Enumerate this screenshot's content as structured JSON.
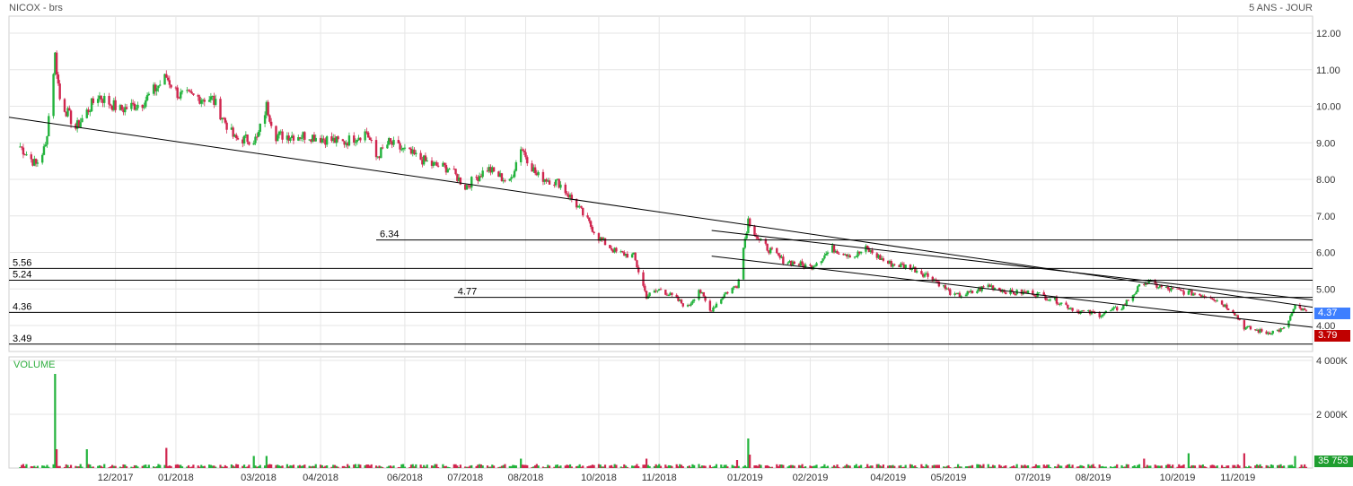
{
  "header": {
    "title": "NICOX - brs",
    "period": "5 ANS - JOUR"
  },
  "colors": {
    "up": "#22b33c",
    "down": "#d0264f",
    "last_tag": "#3e7fff",
    "low_tag": "#c00000",
    "volume_tag": "#1f9e30",
    "grid": "#e6e6e6",
    "line": "#000000"
  },
  "chart_data": {
    "type": "candlestick",
    "xlabel": "",
    "ylabel": "",
    "x_ticks": [
      "12/2017",
      "01/2018",
      "03/2018",
      "04/2018",
      "06/2018",
      "07/2018",
      "08/2018",
      "10/2018",
      "11/2018",
      "01/2019",
      "02/2019",
      "04/2019",
      "05/2019",
      "07/2019",
      "08/2019",
      "10/2019",
      "11/2019"
    ],
    "y_ticks": [
      "12.00",
      "11.00",
      "10.00",
      "9.00",
      "8.00",
      "7.00",
      "6.00",
      "5.00",
      "4.00"
    ],
    "ylim": [
      3.5,
      12.4
    ],
    "grid": true,
    "price_anchors": [
      {
        "d": "2017-10-02",
        "v": 8.9
      },
      {
        "d": "2017-10-12",
        "v": 8.4
      },
      {
        "d": "2017-10-18",
        "v": 8.9
      },
      {
        "d": "2017-10-24",
        "v": 11.4
      },
      {
        "d": "2017-10-27",
        "v": 10.2
      },
      {
        "d": "2017-11-06",
        "v": 9.4
      },
      {
        "d": "2017-11-20",
        "v": 10.3
      },
      {
        "d": "2017-12-04",
        "v": 9.9
      },
      {
        "d": "2017-12-18",
        "v": 10.1
      },
      {
        "d": "2018-01-02",
        "v": 10.8
      },
      {
        "d": "2018-01-10",
        "v": 10.3
      },
      {
        "d": "2018-01-31",
        "v": 10.2
      },
      {
        "d": "2018-02-14",
        "v": 9.1
      },
      {
        "d": "2018-02-28",
        "v": 9.1
      },
      {
        "d": "2018-03-06",
        "v": 10.0
      },
      {
        "d": "2018-03-12",
        "v": 9.2
      },
      {
        "d": "2018-04-02",
        "v": 9.2
      },
      {
        "d": "2018-04-23",
        "v": 9.0
      },
      {
        "d": "2018-05-08",
        "v": 9.3
      },
      {
        "d": "2018-05-14",
        "v": 8.6
      },
      {
        "d": "2018-05-22",
        "v": 9.0
      },
      {
        "d": "2018-06-18",
        "v": 8.4
      },
      {
        "d": "2018-06-29",
        "v": 8.3
      },
      {
        "d": "2018-07-09",
        "v": 7.8
      },
      {
        "d": "2018-07-23",
        "v": 8.3
      },
      {
        "d": "2018-08-06",
        "v": 7.9
      },
      {
        "d": "2018-08-13",
        "v": 8.9
      },
      {
        "d": "2018-08-23",
        "v": 8.1
      },
      {
        "d": "2018-09-06",
        "v": 7.9
      },
      {
        "d": "2018-09-17",
        "v": 7.3
      },
      {
        "d": "2018-10-01",
        "v": 6.4
      },
      {
        "d": "2018-10-12",
        "v": 6.0
      },
      {
        "d": "2018-10-23",
        "v": 5.9
      },
      {
        "d": "2018-10-31",
        "v": 4.8
      },
      {
        "d": "2018-11-09",
        "v": 5.0
      },
      {
        "d": "2018-11-26",
        "v": 4.5
      },
      {
        "d": "2018-12-03",
        "v": 5.0
      },
      {
        "d": "2018-12-10",
        "v": 4.4
      },
      {
        "d": "2018-12-20",
        "v": 4.9
      },
      {
        "d": "2018-12-27",
        "v": 5.1
      },
      {
        "d": "2019-01-03",
        "v": 6.9
      },
      {
        "d": "2019-01-10",
        "v": 6.3
      },
      {
        "d": "2019-01-24",
        "v": 5.8
      },
      {
        "d": "2019-02-11",
        "v": 5.6
      },
      {
        "d": "2019-02-25",
        "v": 6.1
      },
      {
        "d": "2019-03-11",
        "v": 5.9
      },
      {
        "d": "2019-03-18",
        "v": 6.1
      },
      {
        "d": "2019-04-01",
        "v": 5.7
      },
      {
        "d": "2019-04-15",
        "v": 5.6
      },
      {
        "d": "2019-04-29",
        "v": 5.3
      },
      {
        "d": "2019-05-13",
        "v": 4.8
      },
      {
        "d": "2019-05-24",
        "v": 4.9
      },
      {
        "d": "2019-06-03",
        "v": 5.1
      },
      {
        "d": "2019-06-17",
        "v": 4.9
      },
      {
        "d": "2019-07-01",
        "v": 4.9
      },
      {
        "d": "2019-07-15",
        "v": 4.7
      },
      {
        "d": "2019-07-29",
        "v": 4.4
      },
      {
        "d": "2019-08-12",
        "v": 4.3
      },
      {
        "d": "2019-08-26",
        "v": 4.5
      },
      {
        "d": "2019-09-09",
        "v": 5.2
      },
      {
        "d": "2019-09-23",
        "v": 5.0
      },
      {
        "d": "2019-10-07",
        "v": 4.9
      },
      {
        "d": "2019-10-21",
        "v": 4.8
      },
      {
        "d": "2019-11-04",
        "v": 4.4
      },
      {
        "d": "2019-11-11",
        "v": 3.95
      },
      {
        "d": "2019-11-25",
        "v": 3.8
      },
      {
        "d": "2019-12-06",
        "v": 3.9
      },
      {
        "d": "2019-12-13",
        "v": 4.5
      },
      {
        "d": "2019-12-20",
        "v": 4.37
      }
    ],
    "horizontal_levels": [
      {
        "label": "6.34",
        "value": 6.34,
        "from": "2018-05-14"
      },
      {
        "label": "5.56",
        "value": 5.56,
        "from": "2017-09-25"
      },
      {
        "label": "5.24",
        "value": 5.24,
        "from": "2017-09-25"
      },
      {
        "label": "4.77",
        "value": 4.77,
        "from": "2018-07-02"
      },
      {
        "label": "4.36",
        "value": 4.36,
        "from": "2017-09-25"
      },
      {
        "label": "3.49",
        "value": 3.49,
        "from": "2017-09-25"
      }
    ],
    "trendlines": [
      {
        "from": {
          "d": "2017-09-25",
          "v": 9.7
        },
        "to": {
          "d": "2019-12-24",
          "v": 4.5
        }
      },
      {
        "from": {
          "d": "2018-12-11",
          "v": 6.6
        },
        "to": {
          "d": "2019-12-24",
          "v": 4.7
        }
      },
      {
        "from": {
          "d": "2018-12-11",
          "v": 5.9
        },
        "to": {
          "d": "2019-12-24",
          "v": 3.95
        }
      }
    ],
    "last_price": {
      "label": "4.37",
      "value": 4.37
    },
    "low_marker": {
      "label": "3.79",
      "value": 3.79
    },
    "volume": {
      "label": "VOLUME",
      "y_ticks": [
        "4 000K",
        "2 000K"
      ],
      "ylim": [
        0,
        4200000
      ],
      "spikes": [
        {
          "d": "2017-10-24",
          "v": 3500000
        },
        {
          "d": "2017-10-25",
          "v": 700000
        },
        {
          "d": "2017-11-13",
          "v": 700000
        },
        {
          "d": "2018-01-02",
          "v": 750000
        },
        {
          "d": "2018-02-26",
          "v": 450000
        },
        {
          "d": "2018-03-06",
          "v": 450000
        },
        {
          "d": "2018-08-13",
          "v": 350000
        },
        {
          "d": "2018-10-31",
          "v": 350000
        },
        {
          "d": "2018-12-27",
          "v": 300000
        },
        {
          "d": "2019-01-03",
          "v": 1100000
        },
        {
          "d": "2019-01-04",
          "v": 500000
        },
        {
          "d": "2019-09-09",
          "v": 350000
        },
        {
          "d": "2019-10-07",
          "v": 550000
        },
        {
          "d": "2019-11-11",
          "v": 550000
        },
        {
          "d": "2019-12-13",
          "v": 450000
        }
      ],
      "last_label": "35 753"
    }
  }
}
